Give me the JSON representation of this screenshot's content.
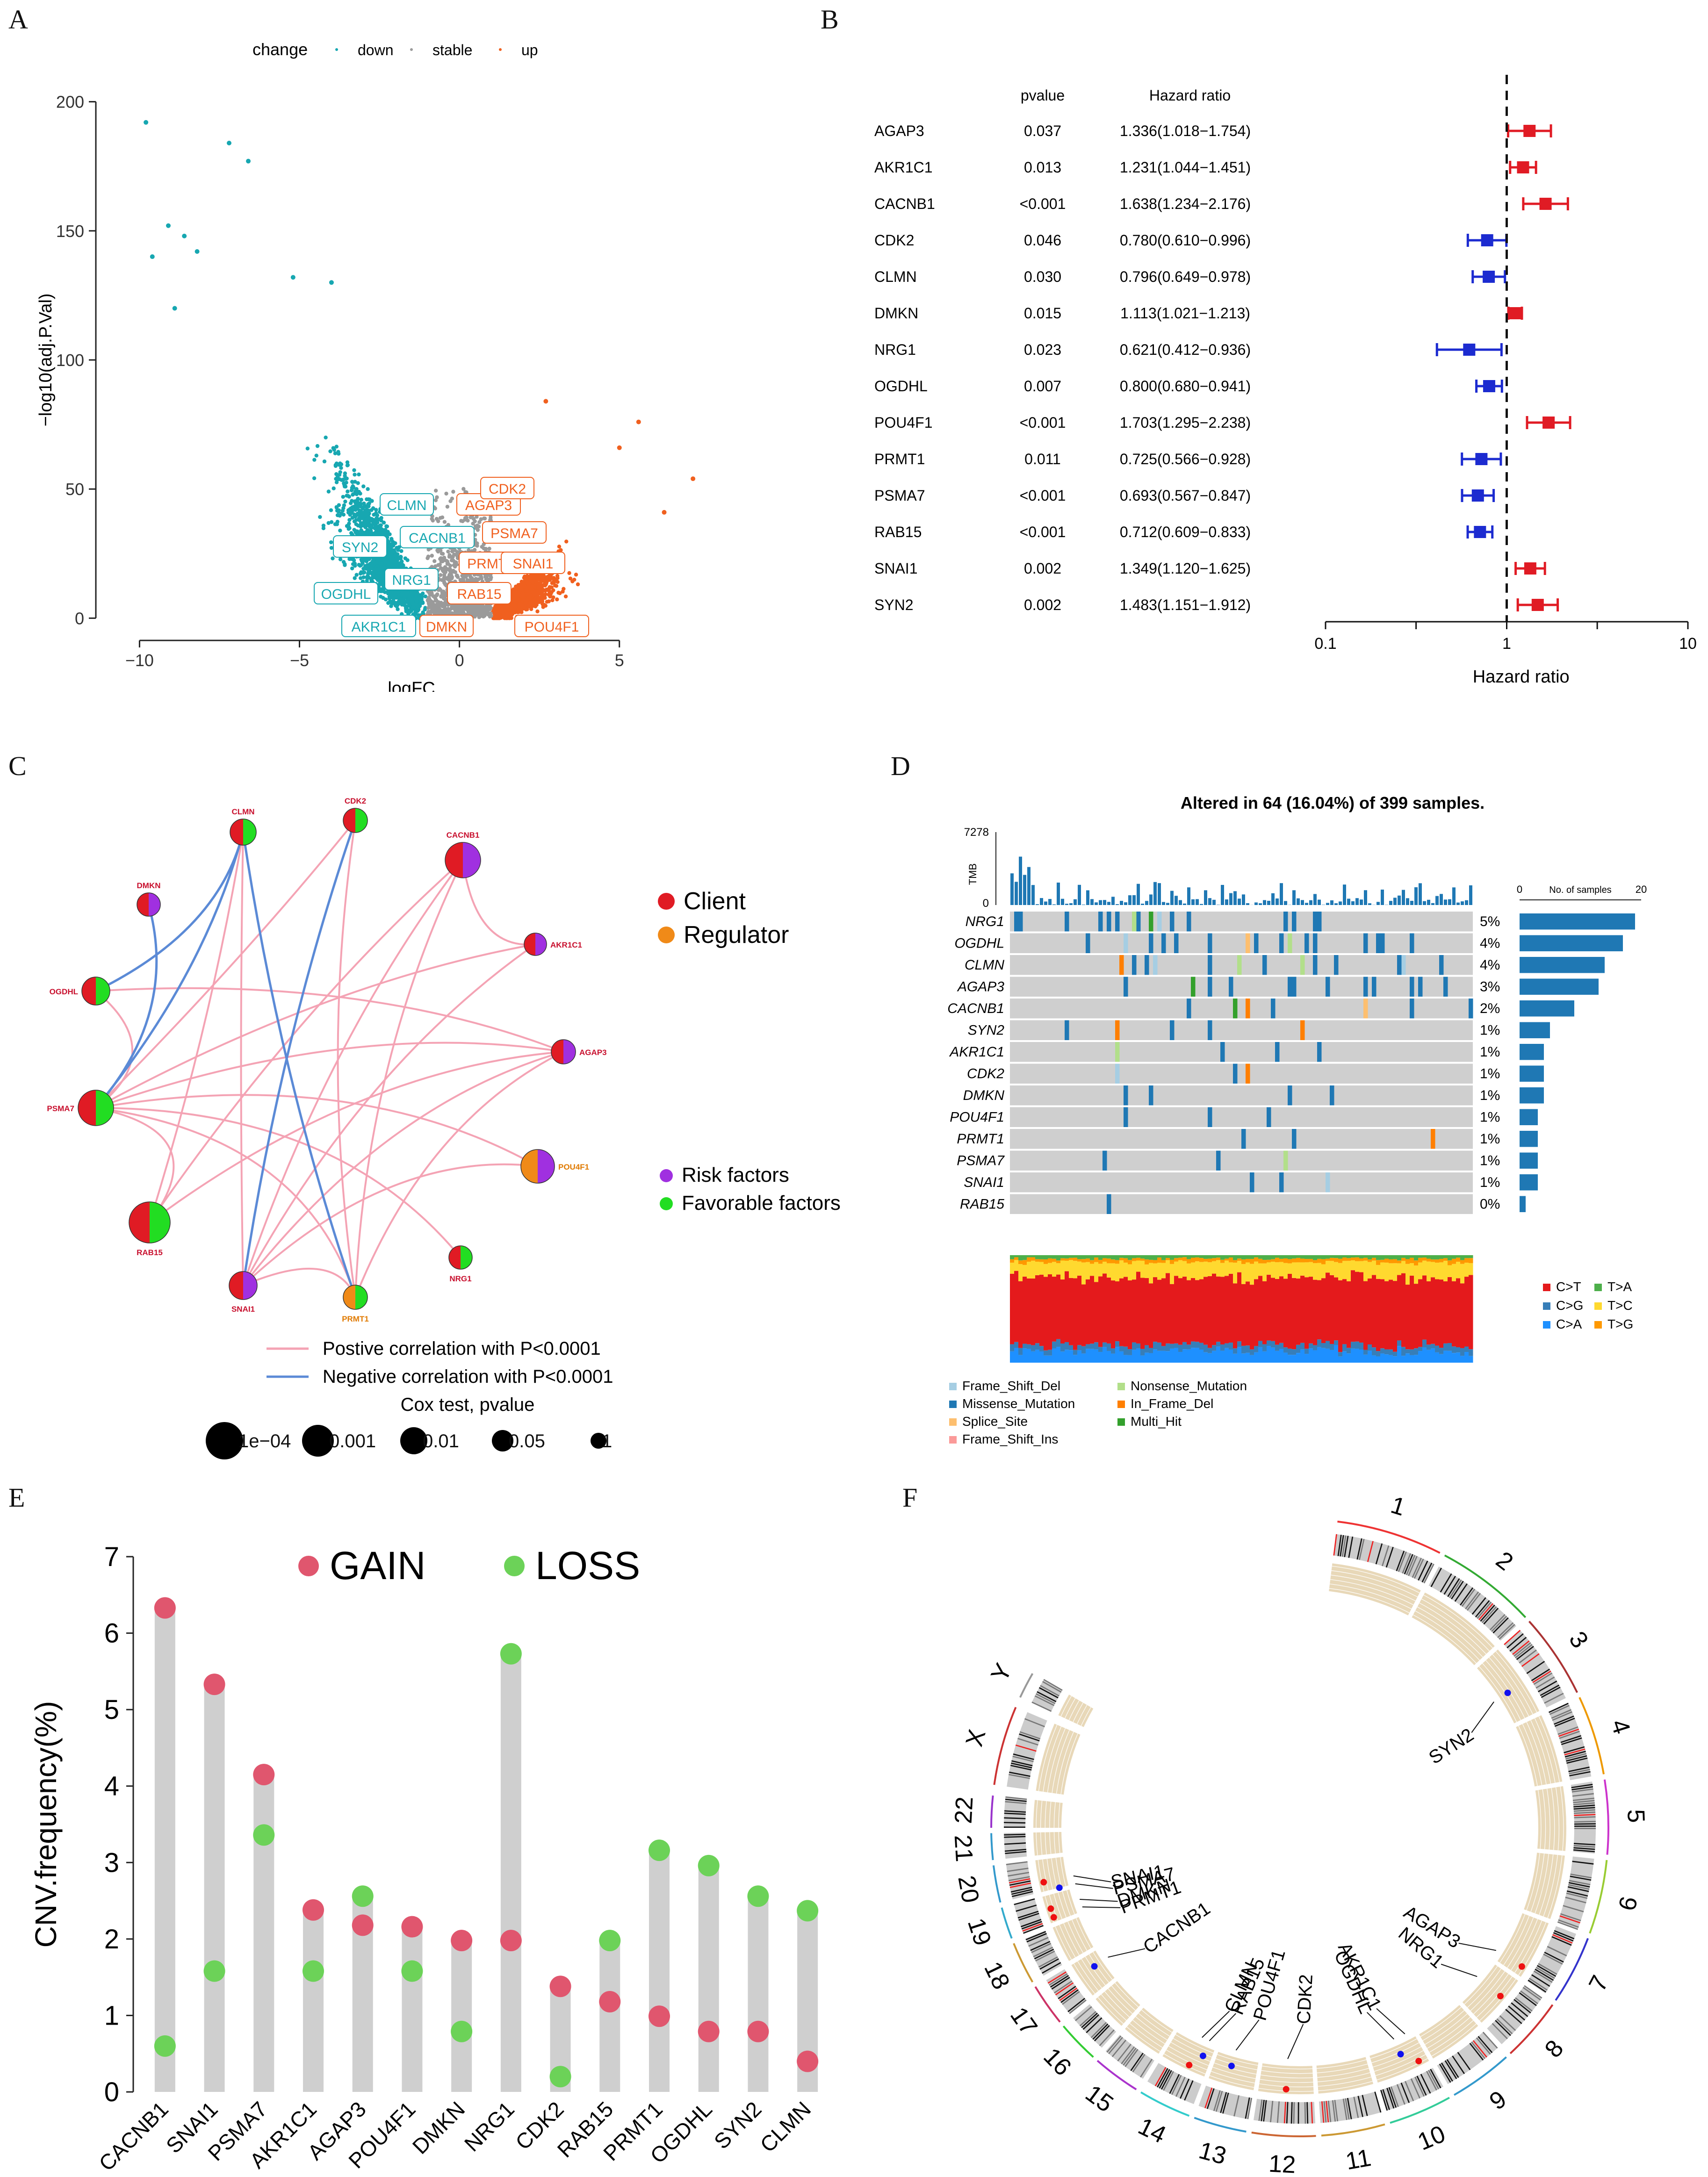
{
  "panels": {
    "A": "A",
    "B": "B",
    "C": "C",
    "D": "D",
    "E": "E",
    "F": "F"
  },
  "colors": {
    "down": "#17a7b1",
    "stable": "#9a9a9a",
    "up": "#f0601f",
    "hr_high": "#e01b24",
    "hr_low": "#1c2bd0",
    "client": "#e01b24",
    "regulator": "#f08a18",
    "risk": "#a030e0",
    "favorable": "#22dd22",
    "pos_corr": "#f4a3b4",
    "neg_corr": "#5b8ad6",
    "gain": "#e0566e",
    "loss": "#6cd258",
    "lollipop_bar": "#cfcfcf"
  },
  "chart_data": [
    {
      "id": "A",
      "type": "scatter",
      "title": "",
      "legend_title": "change",
      "legend": [
        "down",
        "stable",
        "up"
      ],
      "xlabel": "logFC",
      "ylabel": "−log10(adj.P.Val)",
      "xlim": [
        -11,
        8
      ],
      "ylim": [
        -5,
        205
      ],
      "xticks": [
        -10,
        -5,
        0,
        5
      ],
      "yticks": [
        0,
        50,
        100,
        150,
        200
      ],
      "top_points": [
        {
          "x": -9.8,
          "y": 192,
          "group": "down"
        },
        {
          "x": -7.2,
          "y": 184,
          "group": "down"
        },
        {
          "x": -6.6,
          "y": 177,
          "group": "down"
        },
        {
          "x": -9.1,
          "y": 152,
          "group": "down"
        },
        {
          "x": -8.6,
          "y": 148,
          "group": "down"
        },
        {
          "x": -8.2,
          "y": 142,
          "group": "down"
        },
        {
          "x": -9.6,
          "y": 140,
          "group": "down"
        },
        {
          "x": -5.2,
          "y": 132,
          "group": "down"
        },
        {
          "x": -4.0,
          "y": 130,
          "group": "down"
        },
        {
          "x": -8.9,
          "y": 120,
          "group": "down"
        },
        {
          "x": 5.6,
          "y": 76,
          "group": "up"
        },
        {
          "x": 2.7,
          "y": 84,
          "group": "up"
        },
        {
          "x": 5.0,
          "y": 66,
          "group": "up"
        },
        {
          "x": 7.3,
          "y": 54,
          "group": "up"
        },
        {
          "x": 6.4,
          "y": 41,
          "group": "up"
        }
      ],
      "labeled_genes": {
        "down": [
          "CLMN",
          "CACNB1",
          "SYN2",
          "NRG1",
          "OGDHL",
          "AKR1C1"
        ],
        "up": [
          "AGAP3",
          "CDK2",
          "PSMA7",
          "PRMT1",
          "SNAI1",
          "RAB15",
          "DMKN",
          "POU4F1"
        ]
      }
    },
    {
      "id": "B",
      "type": "forest",
      "xlabel": "Hazard ratio",
      "col_pvalue": "pvalue",
      "col_hr": "Hazard ratio",
      "xscale": "log",
      "xlim": [
        0.1,
        10
      ],
      "xticks": [
        "0.1",
        "1",
        "10"
      ],
      "rows": [
        {
          "gene": "AGAP3",
          "p": "0.037",
          "hr_text": "1.336(1.018−1.754)",
          "hr": 1.336,
          "lo": 1.018,
          "hi": 1.754
        },
        {
          "gene": "AKR1C1",
          "p": "0.013",
          "hr_text": "1.231(1.044−1.451)",
          "hr": 1.231,
          "lo": 1.044,
          "hi": 1.451
        },
        {
          "gene": "CACNB1",
          "p": "<0.001",
          "hr_text": "1.638(1.234−2.176)",
          "hr": 1.638,
          "lo": 1.234,
          "hi": 2.176
        },
        {
          "gene": "CDK2",
          "p": "0.046",
          "hr_text": "0.780(0.610−0.996)",
          "hr": 0.78,
          "lo": 0.61,
          "hi": 0.996
        },
        {
          "gene": "CLMN",
          "p": "0.030",
          "hr_text": "0.796(0.649−0.978)",
          "hr": 0.796,
          "lo": 0.649,
          "hi": 0.978
        },
        {
          "gene": "DMKN",
          "p": "0.015",
          "hr_text": "1.113(1.021−1.213)",
          "hr": 1.113,
          "lo": 1.021,
          "hi": 1.213
        },
        {
          "gene": "NRG1",
          "p": "0.023",
          "hr_text": "0.621(0.412−0.936)",
          "hr": 0.621,
          "lo": 0.412,
          "hi": 0.936
        },
        {
          "gene": "OGDHL",
          "p": "0.007",
          "hr_text": "0.800(0.680−0.941)",
          "hr": 0.8,
          "lo": 0.68,
          "hi": 0.941
        },
        {
          "gene": "POU4F1",
          "p": "<0.001",
          "hr_text": "1.703(1.295−2.238)",
          "hr": 1.703,
          "lo": 1.295,
          "hi": 2.238
        },
        {
          "gene": "PRMT1",
          "p": "0.011",
          "hr_text": "0.725(0.566−0.928)",
          "hr": 0.725,
          "lo": 0.566,
          "hi": 0.928
        },
        {
          "gene": "PSMA7",
          "p": "<0.001",
          "hr_text": "0.693(0.567−0.847)",
          "hr": 0.693,
          "lo": 0.567,
          "hi": 0.847
        },
        {
          "gene": "RAB15",
          "p": "<0.001",
          "hr_text": "0.712(0.609−0.833)",
          "hr": 0.712,
          "lo": 0.609,
          "hi": 0.833
        },
        {
          "gene": "SNAI1",
          "p": "0.002",
          "hr_text": "1.349(1.120−1.625)",
          "hr": 1.349,
          "lo": 1.12,
          "hi": 1.625
        },
        {
          "gene": "SYN2",
          "p": "0.002",
          "hr_text": "1.483(1.151−1.912)",
          "hr": 1.483,
          "lo": 1.151,
          "hi": 1.912
        }
      ]
    },
    {
      "id": "C",
      "type": "network",
      "nodes": [
        {
          "name": "CLMN",
          "role": "Client",
          "factor": "Favorable"
        },
        {
          "name": "CDK2",
          "role": "Client",
          "factor": "Favorable"
        },
        {
          "name": "CACNB1",
          "role": "Client",
          "factor": "Risk"
        },
        {
          "name": "AKR1C1",
          "role": "Client",
          "factor": "Risk"
        },
        {
          "name": "AGAP3",
          "role": "Client",
          "factor": "Risk"
        },
        {
          "name": "POU4F1",
          "role": "Regulator",
          "factor": "Risk"
        },
        {
          "name": "NRG1",
          "role": "Client",
          "factor": "Favorable"
        },
        {
          "name": "PRMT1",
          "role": "Regulator",
          "factor": "Favorable"
        },
        {
          "name": "SNAI1",
          "role": "Client",
          "factor": "Risk"
        },
        {
          "name": "RAB15",
          "role": "Client",
          "factor": "Favorable"
        },
        {
          "name": "PSMA7",
          "role": "Client",
          "factor": "Favorable"
        },
        {
          "name": "OGDHL",
          "role": "Client",
          "factor": "Favorable"
        },
        {
          "name": "DMKN",
          "role": "Client",
          "factor": "Risk"
        }
      ],
      "positive_edges": [
        [
          "CLMN",
          "SNAI1"
        ],
        [
          "CDK2",
          "PRMT1"
        ],
        [
          "CDK2",
          "PSMA7"
        ],
        [
          "CACNB1",
          "SNAI1"
        ],
        [
          "CACNB1",
          "PRMT1"
        ],
        [
          "CACNB1",
          "AKR1C1"
        ],
        [
          "AKR1C1",
          "PSMA7"
        ],
        [
          "AGAP3",
          "PSMA7"
        ],
        [
          "AGAP3",
          "RAB15"
        ],
        [
          "AGAP3",
          "SNAI1"
        ],
        [
          "AGAP3",
          "PRMT1"
        ],
        [
          "POU4F1",
          "PSMA7"
        ],
        [
          "POU4F1",
          "SNAI1"
        ],
        [
          "NRG1",
          "PSMA7"
        ],
        [
          "RAB15",
          "PSMA7"
        ],
        [
          "OGDHL",
          "PSMA7"
        ],
        [
          "PRMT1",
          "PSMA7"
        ],
        [
          "SNAI1",
          "PRMT1"
        ],
        [
          "CLMN",
          "RAB15"
        ],
        [
          "CACNB1",
          "RAB15"
        ],
        [
          "AKR1C1",
          "SNAI1"
        ],
        [
          "AGAP3",
          "OGDHL"
        ]
      ],
      "negative_edges": [
        [
          "CLMN",
          "PSMA7"
        ],
        [
          "CLMN",
          "PRMT1"
        ],
        [
          "CDK2",
          "SNAI1"
        ],
        [
          "DMKN",
          "PSMA7"
        ],
        [
          "CLMN",
          "OGDHL"
        ]
      ],
      "legend_role": [
        "Client",
        "Regulator"
      ],
      "legend_factor": [
        "Risk factors",
        "Favorable factors"
      ],
      "legend_edges": [
        "Postive correlation with P<0.0001",
        "Negative correlation with P<0.0001"
      ],
      "cox_title": "Cox test, pvalue",
      "cox_sizes": [
        "1e−04",
        "0.001",
        "0.01",
        "0.05",
        "1"
      ]
    },
    {
      "id": "D",
      "type": "oncoplot",
      "title": "Altered in 64 (16.04%) of 399 samples.",
      "tmb_label": "TMB",
      "tmb_max": "7278",
      "tmb_min": "0",
      "samples_axis_label": "No. of samples",
      "samples_axis_ticks": [
        "0",
        "20"
      ],
      "samples_axis_max": 20,
      "genes": [
        {
          "name": "NRG1",
          "pct": "5%",
          "count": 19
        },
        {
          "name": "OGDHL",
          "pct": "4%",
          "count": 17
        },
        {
          "name": "CLMN",
          "pct": "4%",
          "count": 14
        },
        {
          "name": "AGAP3",
          "pct": "3%",
          "count": 13
        },
        {
          "name": "CACNB1",
          "pct": "2%",
          "count": 9
        },
        {
          "name": "SYN2",
          "pct": "1%",
          "count": 5
        },
        {
          "name": "AKR1C1",
          "pct": "1%",
          "count": 4
        },
        {
          "name": "CDK2",
          "pct": "1%",
          "count": 4
        },
        {
          "name": "DMKN",
          "pct": "1%",
          "count": 4
        },
        {
          "name": "POU4F1",
          "pct": "1%",
          "count": 3
        },
        {
          "name": "PRMT1",
          "pct": "1%",
          "count": 3
        },
        {
          "name": "PSMA7",
          "pct": "1%",
          "count": 3
        },
        {
          "name": "SNAI1",
          "pct": "1%",
          "count": 3
        },
        {
          "name": "RAB15",
          "pct": "0%",
          "count": 1
        }
      ],
      "variant_legend": [
        "Frame_Shift_Del",
        "Missense_Mutation",
        "Splice_Site",
        "Frame_Shift_Ins",
        "Nonsense_Mutation",
        "In_Frame_Del",
        "Multi_Hit"
      ],
      "variant_colors": [
        "#a6cee3",
        "#1f78b4",
        "#fdbf6f",
        "#fb9a99",
        "#b2df8a",
        "#ff7f00",
        "#33a02c"
      ],
      "titv_legend": [
        "C>T",
        "T>A",
        "C>G",
        "T>C",
        "C>A",
        "T>G"
      ],
      "titv_colors": [
        "#e41a1c",
        "#4daf4a",
        "#377eb8",
        "#ffd92f",
        "#1e90ff",
        "#ff9900"
      ]
    },
    {
      "id": "E",
      "type": "lollipop",
      "ylabel": "CNV.frequency(%)",
      "ylim": [
        0,
        7
      ],
      "yticks": [
        0,
        1,
        2,
        3,
        4,
        5,
        6,
        7
      ],
      "legend": [
        "GAIN",
        "LOSS"
      ],
      "categories": [
        "CACNB1",
        "SNAI1",
        "PSMA7",
        "AKR1C1",
        "AGAP3",
        "POU4F1",
        "DMKN",
        "NRG1",
        "CDK2",
        "RAB15",
        "PRMT1",
        "OGDHL",
        "SYN2",
        "CLMN"
      ],
      "series": [
        {
          "name": "GAIN",
          "values": [
            6.33,
            5.33,
            4.15,
            2.38,
            2.18,
            2.16,
            1.98,
            1.98,
            1.38,
            1.18,
            0.99,
            0.79,
            0.79,
            0.4
          ]
        },
        {
          "name": "LOSS",
          "values": [
            0.6,
            1.58,
            3.36,
            1.58,
            2.56,
            1.58,
            0.79,
            5.73,
            0.2,
            1.98,
            3.16,
            2.96,
            2.56,
            2.37
          ]
        }
      ]
    },
    {
      "id": "F",
      "type": "circos",
      "chromosomes": [
        "1",
        "2",
        "3",
        "4",
        "5",
        "6",
        "7",
        "8",
        "9",
        "10",
        "11",
        "12",
        "13",
        "14",
        "15",
        "16",
        "17",
        "18",
        "19",
        "20",
        "21",
        "22",
        "X",
        "Y"
      ],
      "genes": [
        {
          "name": "SNAI1",
          "chrom": "20",
          "cnv": "gain"
        },
        {
          "name": "PSMA7",
          "chrom": "20",
          "cnv": "loss"
        },
        {
          "name": "DMKN",
          "chrom": "19",
          "cnv": "gain"
        },
        {
          "name": "PRMT1",
          "chrom": "19",
          "cnv": "gain"
        },
        {
          "name": "CACNB1",
          "chrom": "17",
          "cnv": "loss"
        },
        {
          "name": "CLMN",
          "chrom": "14",
          "cnv": "gain"
        },
        {
          "name": "RAB15",
          "chrom": "14",
          "cnv": "loss"
        },
        {
          "name": "POU4F1",
          "chrom": "13",
          "cnv": "loss"
        },
        {
          "name": "CDK2",
          "chrom": "12",
          "cnv": "gain"
        },
        {
          "name": "OGDHL",
          "chrom": "10",
          "cnv": "loss"
        },
        {
          "name": "AKR1C1",
          "chrom": "10",
          "cnv": "gain"
        },
        {
          "name": "NRG1",
          "chrom": "8",
          "cnv": "gain"
        },
        {
          "name": "AGAP3",
          "chrom": "7",
          "cnv": "gain"
        },
        {
          "name": "SYN2",
          "chrom": "3",
          "cnv": "loss"
        }
      ]
    }
  ]
}
